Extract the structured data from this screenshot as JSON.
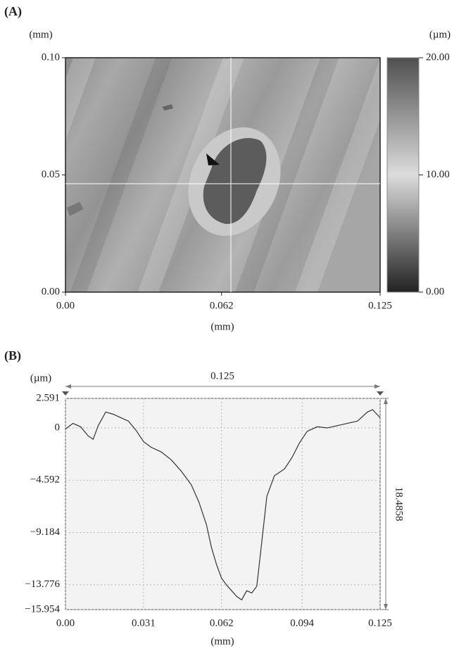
{
  "chart_data": [
    {
      "type": "surface-map",
      "panel": "(A)",
      "x_label": "(mm)",
      "y_label": "(mm)",
      "xlim": [
        0,
        0.125
      ],
      "ylim": [
        0,
        0.1
      ],
      "xticks": [
        {
          "value": 0,
          "label": "0.00"
        },
        0.062,
        0.125
      ],
      "yticks": [
        {
          "value": 0,
          "label": "0.00"
        },
        0.05,
        {
          "value": 0.1,
          "label": "0.10"
        }
      ],
      "colorbar": {
        "label": "(µm)",
        "lim": [
          0,
          20
        ],
        "ticks": [
          {
            "value": 0,
            "label": "0.00"
          },
          {
            "value": 10,
            "label": "10.00"
          },
          {
            "value": 20,
            "label": "20.00"
          }
        ]
      }
    },
    {
      "type": "line",
      "panel": "(B)",
      "x_label": "(mm)",
      "y_label": "(µm)",
      "xlim": [
        0,
        0.125
      ],
      "ylim": [
        -15.954,
        2.591
      ],
      "xticks": [
        {
          "value": 0,
          "label": "0.00"
        },
        0.031,
        0.062,
        0.094,
        0.125
      ],
      "yticks": [
        {
          "value": -15.954,
          "label": "−15.954"
        },
        {
          "value": -13.776,
          "label": "−13.776"
        },
        {
          "value": -9.184,
          "label": "−9.184"
        },
        {
          "value": -4.592,
          "label": "−4.592"
        },
        0,
        2.591
      ],
      "grid": true,
      "x": [
        0,
        0.003,
        0.006,
        0.009,
        0.011,
        0.013,
        0.016,
        0.019,
        0.022,
        0.025,
        0.028,
        0.031,
        0.034,
        0.038,
        0.042,
        0.046,
        0.05,
        0.053,
        0.056,
        0.058,
        0.06,
        0.062,
        0.064,
        0.066,
        0.068,
        0.07,
        0.072,
        0.074,
        0.076,
        0.078,
        0.08,
        0.083,
        0.087,
        0.09,
        0.093,
        0.096,
        0.1,
        0.104,
        0.108,
        0.112,
        0.116,
        0.12,
        0.122,
        0.125
      ],
      "series": [
        {
          "color": "#333333",
          "values": [
            -0.1,
            0.4,
            0.1,
            -0.7,
            -1.0,
            0.2,
            1.4,
            1.2,
            0.9,
            0.6,
            -0.2,
            -1.2,
            -1.7,
            -2.1,
            -2.8,
            -3.8,
            -5.0,
            -6.5,
            -8.5,
            -10.5,
            -12.0,
            -13.2,
            -13.8,
            -14.3,
            -14.8,
            -15.1,
            -14.3,
            -14.5,
            -13.9,
            -10.0,
            -6.0,
            -4.2,
            -3.6,
            -2.6,
            -1.3,
            -0.3,
            0.1,
            0.0,
            0.2,
            0.4,
            0.6,
            1.4,
            1.6,
            0.9
          ]
        }
      ],
      "annotations": {
        "width": 0.125,
        "height": 18.4858
      }
    }
  ]
}
